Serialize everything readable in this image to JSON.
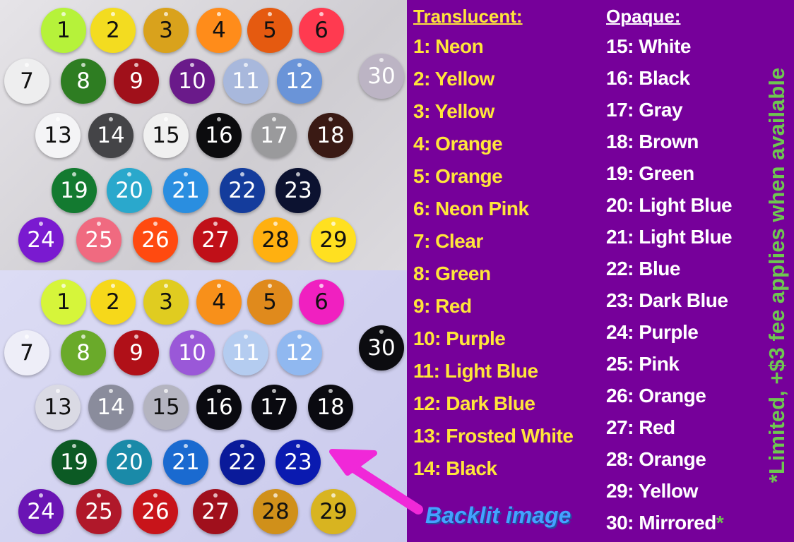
{
  "top_panel": {
    "discs": [
      {
        "num": "1",
        "color": "#b6f23a",
        "text": "#111"
      },
      {
        "num": "2",
        "color": "#f3dc20",
        "text": "#111"
      },
      {
        "num": "3",
        "color": "#d9a21c",
        "text": "#111"
      },
      {
        "num": "4",
        "color": "#ff8c1a",
        "text": "#111"
      },
      {
        "num": "5",
        "color": "#e55a10",
        "text": "#111"
      },
      {
        "num": "6",
        "color": "#ff3a50",
        "text": "#111"
      },
      {
        "num": "7",
        "color": "#eeeeef",
        "text": "#111"
      },
      {
        "num": "8",
        "color": "#2e7d22",
        "text": "#fff"
      },
      {
        "num": "9",
        "color": "#a0101a",
        "text": "#fff"
      },
      {
        "num": "10",
        "color": "#6a1a8a",
        "text": "#fff"
      },
      {
        "num": "11",
        "color": "#a8b8dc",
        "text": "#fff"
      },
      {
        "num": "12",
        "color": "#6a94d8",
        "text": "#fff"
      },
      {
        "num": "30",
        "color": "#bcb4c4",
        "text": "#fff"
      },
      {
        "num": "13",
        "color": "#f4f4f6",
        "text": "#111"
      },
      {
        "num": "14",
        "color": "#444447",
        "text": "#fff"
      },
      {
        "num": "15",
        "color": "#f0f0f0",
        "text": "#111"
      },
      {
        "num": "16",
        "color": "#0c0c0e",
        "text": "#fff"
      },
      {
        "num": "17",
        "color": "#9a9a9c",
        "text": "#fff"
      },
      {
        "num": "18",
        "color": "#3a1a14",
        "text": "#fff"
      },
      {
        "num": "19",
        "color": "#137a30",
        "text": "#fff"
      },
      {
        "num": "20",
        "color": "#2aa8cc",
        "text": "#fff"
      },
      {
        "num": "21",
        "color": "#2a8ee0",
        "text": "#fff"
      },
      {
        "num": "22",
        "color": "#143c9c",
        "text": "#fff"
      },
      {
        "num": "23",
        "color": "#0c1230",
        "text": "#fff"
      },
      {
        "num": "24",
        "color": "#7a1ad0",
        "text": "#fff"
      },
      {
        "num": "25",
        "color": "#f06a80",
        "text": "#fff"
      },
      {
        "num": "26",
        "color": "#ff4a10",
        "text": "#fff"
      },
      {
        "num": "27",
        "color": "#c01018",
        "text": "#fff"
      },
      {
        "num": "28",
        "color": "#ffb010",
        "text": "#111"
      },
      {
        "num": "29",
        "color": "#ffe020",
        "text": "#111"
      }
    ]
  },
  "bottom_panel": {
    "discs": [
      {
        "num": "1",
        "color": "#d6f53a",
        "text": "#111"
      },
      {
        "num": "2",
        "color": "#f6d81a",
        "text": "#111"
      },
      {
        "num": "3",
        "color": "#e0cc20",
        "text": "#111"
      },
      {
        "num": "4",
        "color": "#f8901a",
        "text": "#111"
      },
      {
        "num": "5",
        "color": "#e08a1c",
        "text": "#111"
      },
      {
        "num": "6",
        "color": "#f020c0",
        "text": "#111"
      },
      {
        "num": "7",
        "color": "#eeeef8",
        "text": "#111"
      },
      {
        "num": "8",
        "color": "#6aaa2a",
        "text": "#fff"
      },
      {
        "num": "9",
        "color": "#b01018",
        "text": "#fff"
      },
      {
        "num": "10",
        "color": "#9a58d8",
        "text": "#fff"
      },
      {
        "num": "11",
        "color": "#b4ccf0",
        "text": "#fff"
      },
      {
        "num": "12",
        "color": "#90b8f0",
        "text": "#fff"
      },
      {
        "num": "30",
        "color": "#0c0c10",
        "text": "#fff"
      },
      {
        "num": "13",
        "color": "#dadae4",
        "text": "#111"
      },
      {
        "num": "14",
        "color": "#8a8c9c",
        "text": "#fff"
      },
      {
        "num": "15",
        "color": "#b4b4c0",
        "text": "#111"
      },
      {
        "num": "16",
        "color": "#0a0a10",
        "text": "#fff"
      },
      {
        "num": "17",
        "color": "#0a0a10",
        "text": "#fff"
      },
      {
        "num": "18",
        "color": "#0a0a10",
        "text": "#fff"
      },
      {
        "num": "19",
        "color": "#0c5a24",
        "text": "#fff"
      },
      {
        "num": "20",
        "color": "#1a8aa8",
        "text": "#fff"
      },
      {
        "num": "21",
        "color": "#1a6ad0",
        "text": "#fff"
      },
      {
        "num": "22",
        "color": "#0a1a9a",
        "text": "#fff"
      },
      {
        "num": "23",
        "color": "#0a1ab0",
        "text": "#fff"
      },
      {
        "num": "24",
        "color": "#6a14b4",
        "text": "#fff"
      },
      {
        "num": "25",
        "color": "#b0182a",
        "text": "#fff"
      },
      {
        "num": "26",
        "color": "#c8141a",
        "text": "#fff"
      },
      {
        "num": "27",
        "color": "#a0101c",
        "text": "#fff"
      },
      {
        "num": "28",
        "color": "#d0901a",
        "text": "#111"
      },
      {
        "num": "29",
        "color": "#d8b420",
        "text": "#111"
      }
    ]
  },
  "translucent": {
    "heading": "Translucent:",
    "items": [
      "1: Neon",
      "2: Yellow",
      "3: Yellow",
      "4: Orange",
      "5: Orange",
      "6: Neon Pink",
      "7: Clear",
      "8: Green",
      "9: Red",
      "10: Purple",
      "11: Light Blue",
      "12: Dark Blue",
      "13: Frosted White",
      "14: Black"
    ]
  },
  "opaque": {
    "heading": "Opaque:",
    "items": [
      "15: White",
      "16: Black",
      "17: Gray",
      "18: Brown",
      "19: Green",
      "20: Light Blue",
      "21: Light Blue",
      "22: Blue",
      "23: Dark Blue",
      "24: Purple",
      "25: Pink",
      "26: Orange",
      "27: Red",
      "28: Orange",
      "29: Yellow",
      "30:  Mirrored"
    ],
    "mirrored_asterisk": "*"
  },
  "note": "*Limited, +$3 fee applies when available",
  "backlit_label": "Backlit image",
  "colors": {
    "background": "#76009a",
    "translucent_text": "#ffe53a",
    "opaque_text": "#ffffff",
    "note": "#6ec750",
    "backlit": "#44a2ff",
    "arrow": "#f028d8"
  }
}
